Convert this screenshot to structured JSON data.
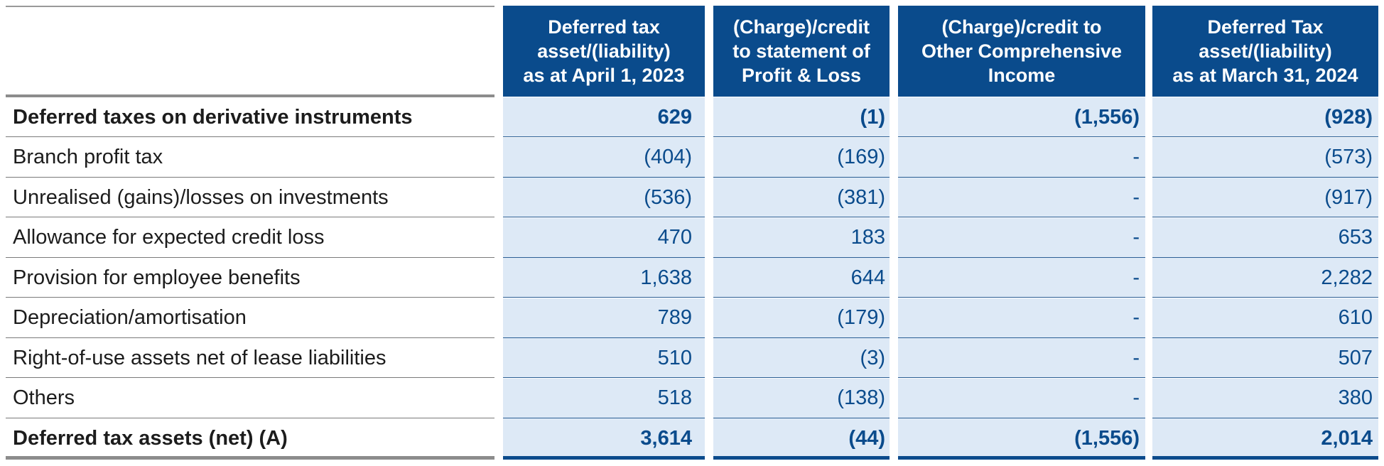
{
  "table": {
    "headers": [
      "Deferred tax\nasset/(liability)\nas at April 1, 2023",
      "(Charge)/credit\nto statement of\nProfit & Loss",
      "(Charge)/credit to\nOther Comprehensive\nIncome",
      "Deferred Tax\nasset/(liability)\nas at March 31, 2024"
    ],
    "rows": [
      {
        "label": "Deferred taxes on derivative instruments",
        "bold": true,
        "values": [
          "629",
          "(1)",
          "(1,556)",
          "(928)"
        ]
      },
      {
        "label": "Branch profit tax",
        "bold": false,
        "values": [
          "(404)",
          "(169)",
          "-",
          "(573)"
        ]
      },
      {
        "label": "Unrealised (gains)/losses on investments",
        "bold": false,
        "values": [
          "(536)",
          "(381)",
          "-",
          "(917)"
        ]
      },
      {
        "label": "Allowance for expected credit loss",
        "bold": false,
        "values": [
          "470",
          "183",
          "-",
          "653"
        ]
      },
      {
        "label": "Provision for employee benefits",
        "bold": false,
        "values": [
          "1,638",
          "644",
          "-",
          "2,282"
        ]
      },
      {
        "label": "Depreciation/amortisation",
        "bold": false,
        "values": [
          "789",
          "(179)",
          "-",
          "610"
        ]
      },
      {
        "label": "Right-of-use assets net of lease liabilities",
        "bold": false,
        "values": [
          "510",
          "(3)",
          "-",
          "507"
        ]
      },
      {
        "label": "Others",
        "bold": false,
        "values": [
          "518",
          "(138)",
          "-",
          "380"
        ]
      },
      {
        "label": "Deferred tax assets (net) (A)",
        "bold": true,
        "values": [
          "3,614",
          "(44)",
          "(1,556)",
          "2,014"
        ]
      }
    ]
  },
  "colors": {
    "header_bg": "#0a4b8c",
    "cell_bg": "#dde9f6",
    "number_text": "#0a4b8c"
  }
}
